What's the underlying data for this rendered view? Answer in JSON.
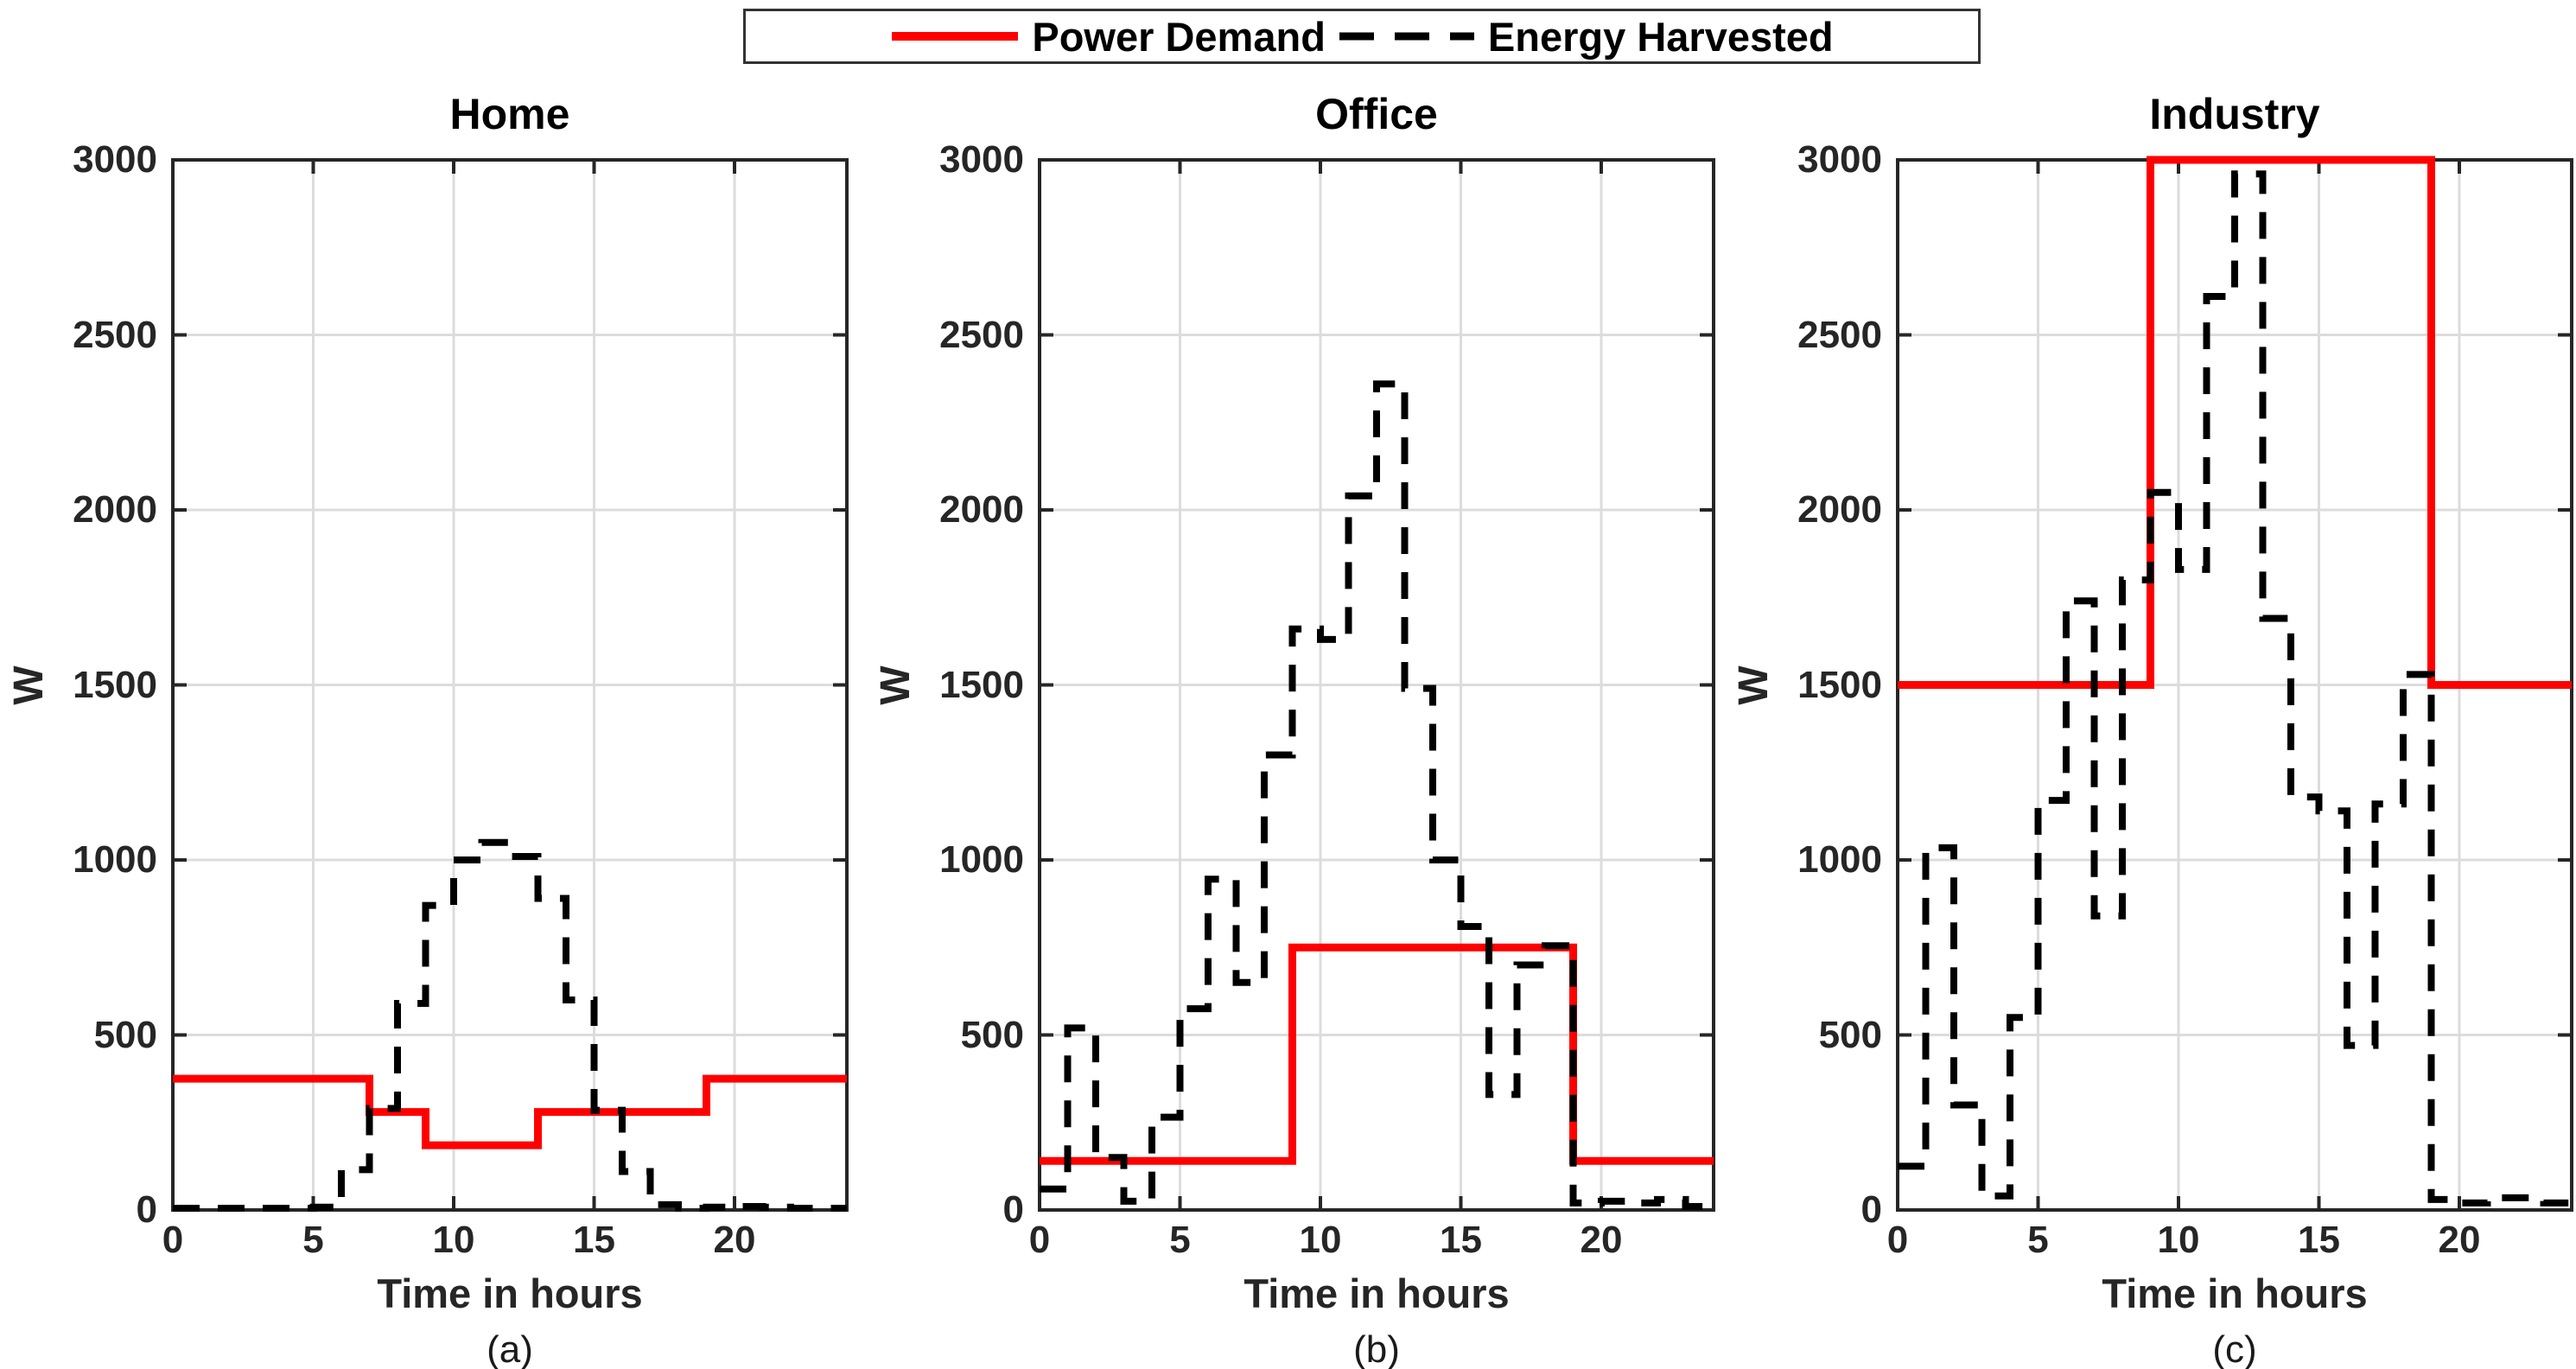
{
  "legend": {
    "items": [
      {
        "label": "Power Demand",
        "color": "#ff0000",
        "style": "solid"
      },
      {
        "label": "Energy Harvested",
        "color": "#000000",
        "style": "dashed"
      }
    ],
    "position": "top-center"
  },
  "chart_data": {
    "type": "line",
    "step_mode": "stairs-post",
    "xlabel": "Time in hours",
    "ylabel": "W",
    "xlim": [
      0,
      24
    ],
    "ylim": [
      0,
      3000
    ],
    "xticks": [
      0,
      5,
      10,
      15,
      20
    ],
    "yticks": [
      0,
      500,
      1000,
      1500,
      2000,
      2500,
      3000
    ],
    "grid": true,
    "hours": [
      0,
      1,
      2,
      3,
      4,
      5,
      6,
      7,
      8,
      9,
      10,
      11,
      12,
      13,
      14,
      15,
      16,
      17,
      18,
      19,
      20,
      21,
      22,
      23
    ],
    "colors": {
      "power_demand": "#ff0000",
      "energy_harvested": "#000000",
      "grid": "#dcdcdc",
      "axis": "#262626"
    },
    "subplots": [
      {
        "title": "Home",
        "sublabel": "(a)",
        "series": [
          {
            "name": "Power Demand",
            "values": [
              375,
              375,
              375,
              375,
              375,
              375,
              375,
              280,
              280,
              185,
              185,
              185,
              185,
              280,
              280,
              280,
              280,
              280,
              280,
              375,
              375,
              375,
              375,
              375
            ]
          },
          {
            "name": "Energy Harvested",
            "values": [
              5,
              5,
              5,
              5,
              5,
              8,
              115,
              290,
              590,
              870,
              1000,
              1050,
              1010,
              890,
              600,
              285,
              110,
              15,
              5,
              8,
              10,
              8,
              5,
              5
            ]
          }
        ]
      },
      {
        "title": "Office",
        "sublabel": "(b)",
        "series": [
          {
            "name": "Power Demand",
            "values": [
              140,
              140,
              140,
              140,
              140,
              140,
              140,
              140,
              140,
              750,
              750,
              750,
              750,
              750,
              750,
              750,
              750,
              750,
              750,
              140,
              140,
              140,
              140,
              140
            ]
          },
          {
            "name": "Energy Harvested",
            "values": [
              60,
              520,
              150,
              25,
              265,
              575,
              945,
              650,
              1300,
              1660,
              1630,
              2040,
              2360,
              1490,
              1000,
              810,
              330,
              700,
              755,
              20,
              25,
              20,
              30,
              10
            ]
          }
        ]
      },
      {
        "title": "Industry",
        "sublabel": "(c)",
        "series": [
          {
            "name": "Power Demand",
            "values": [
              1500,
              1500,
              1500,
              1500,
              1500,
              1500,
              1500,
              1500,
              1500,
              3000,
              3000,
              3000,
              3000,
              3000,
              3000,
              3000,
              3000,
              3000,
              3000,
              1500,
              1500,
              1500,
              1500,
              1500
            ]
          },
          {
            "name": "Energy Harvested",
            "values": [
              125,
              1035,
              300,
              40,
              550,
              1170,
              1740,
              840,
              1800,
              2050,
              1830,
              2610,
              2960,
              1690,
              1180,
              1140,
              470,
              1160,
              1530,
              30,
              20,
              35,
              35,
              20
            ]
          }
        ]
      }
    ]
  },
  "layout_note": ""
}
